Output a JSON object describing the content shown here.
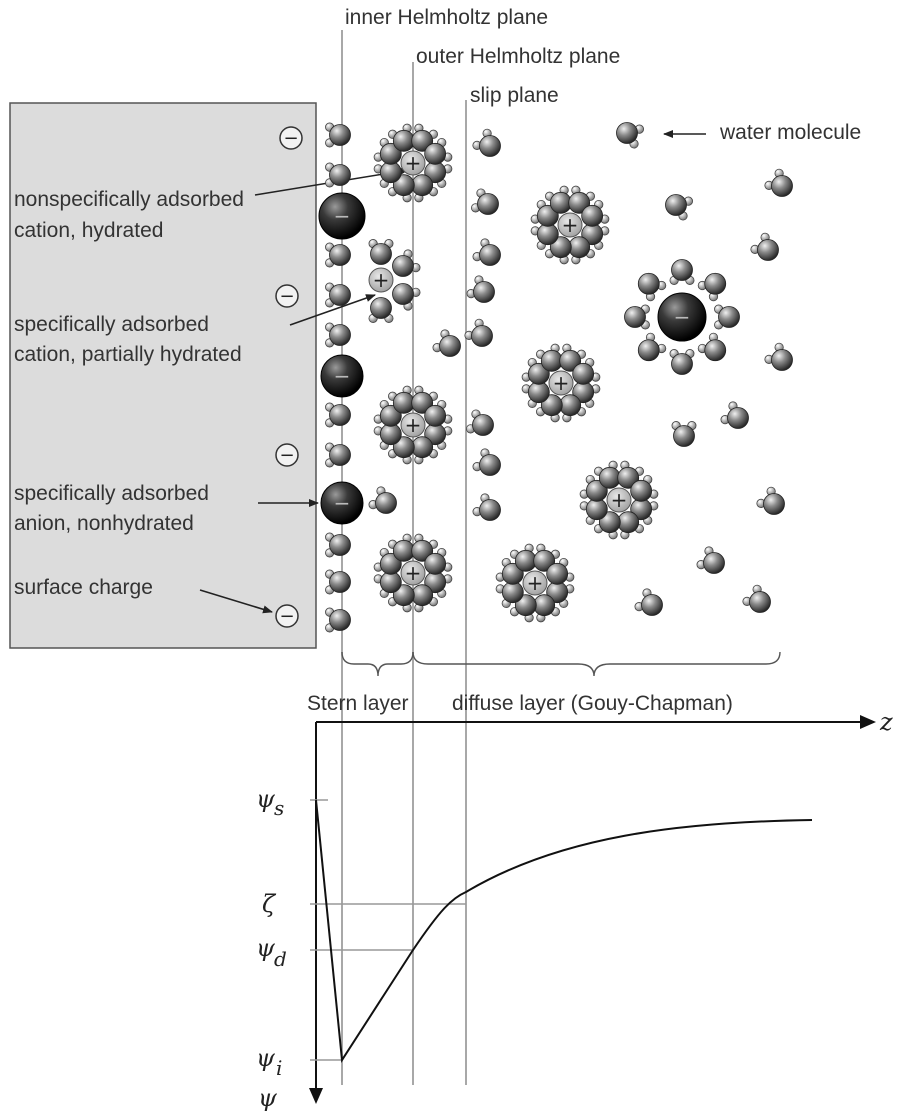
{
  "labels": {
    "inner_helmholtz": "inner Helmholtz plane",
    "outer_helmholtz": "outer Helmholtz plane",
    "slip_plane": "slip plane",
    "water_molecule": "water molecule",
    "nonspecific_line1": "nonspecifically adsorbed",
    "nonspecific_line2": "cation, hydrated",
    "specific_cation_line1": "specifically adsorbed",
    "specific_cation_line2": "cation, partially hydrated",
    "specific_anion_line1": "specifically adsorbed",
    "specific_anion_line2": "anion, nonhydrated",
    "surface_charge": "surface charge",
    "stern_layer": "Stern layer",
    "diffuse_layer": "diffuse layer (Gouy-Chapman)"
  },
  "graph": {
    "x_axis": "z",
    "y_axis": "ψ",
    "psi_s": "ψ",
    "psi_s_sub": "s",
    "zeta": "ζ",
    "psi_d": "ψ",
    "psi_d_sub": "d",
    "psi_i": "ψ",
    "psi_i_sub": "i"
  },
  "ion_signs": {
    "plus": "+",
    "minus": "−"
  },
  "colors": {
    "surface_fill": "#dcdcdc",
    "ion_dark": "#222222",
    "water": "#555555",
    "cation_center": "#bfbfbf",
    "plane_line": "#a8a8a8"
  }
}
